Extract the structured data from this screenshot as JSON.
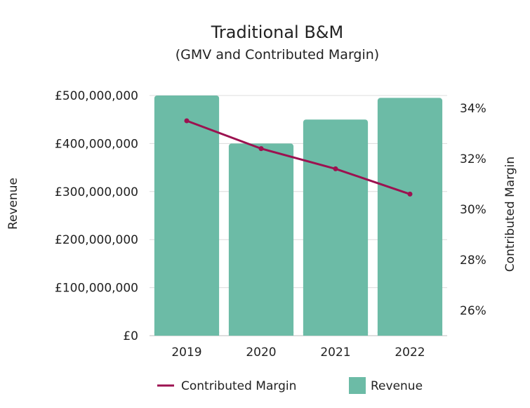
{
  "chart_data": {
    "type": "bar",
    "title": "Traditional B&M",
    "subtitle": "(GMV and Contributed Margin)",
    "categories": [
      "2019",
      "2020",
      "2021",
      "2022"
    ],
    "ylabel": "Revenue",
    "y2label": "Contributed Margin",
    "ylim": [
      0,
      500000000
    ],
    "y2lim": [
      25,
      34.5
    ],
    "yticks": [
      0,
      100000000,
      200000000,
      300000000,
      400000000,
      500000000
    ],
    "ytick_labels": [
      "£0",
      "£100,000,000",
      "£200,000,000",
      "£300,000,000",
      "£400,000,000",
      "£500,000,000"
    ],
    "y2ticks": [
      26,
      28,
      30,
      32,
      34
    ],
    "y2tick_labels": [
      "26%",
      "28%",
      "30%",
      "32%",
      "34%"
    ],
    "grid": true,
    "legend_position": "bottom",
    "series": [
      {
        "name": "Revenue",
        "type": "bar",
        "axis": "left",
        "color": "#6cbba6",
        "values": [
          500000000,
          400000000,
          450000000,
          495000000
        ]
      },
      {
        "name": "Contributed Margin",
        "type": "line",
        "axis": "right",
        "color": "#9c1250",
        "values": [
          33.5,
          32.4,
          31.6,
          30.6
        ]
      }
    ],
    "legend": [
      "Contributed Margin",
      "Revenue"
    ]
  }
}
